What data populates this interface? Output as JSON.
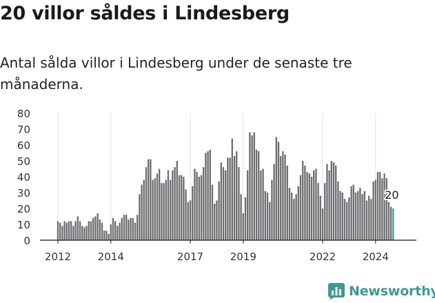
{
  "header": {
    "title": "20 villor såldes i Lindesberg",
    "subtitle": "Antal sålda villor i Lindesberg under de senaste tre månaderna."
  },
  "brand": {
    "name": "Newsworthy",
    "icon": "bar-chart-logo-icon",
    "color": "#3d9a93"
  },
  "chart_data": {
    "type": "bar",
    "title": "",
    "xlabel": "",
    "ylabel": "",
    "ylim": [
      0,
      80
    ],
    "yticks": [
      0,
      10,
      20,
      30,
      40,
      50,
      60,
      70,
      80
    ],
    "x_start": "2012-01",
    "x_tick_labels": [
      {
        "label": "2012",
        "month_index": 0
      },
      {
        "label": "2014",
        "month_index": 24
      },
      {
        "label": "2017",
        "month_index": 60
      },
      {
        "label": "2019",
        "month_index": 84
      },
      {
        "label": "2022",
        "month_index": 120
      },
      {
        "label": "2024",
        "month_index": 144
      }
    ],
    "grid": "vertical",
    "bar_color": "#6b6b70",
    "highlight_color": "#3d9a93",
    "highlight_label": "20",
    "highlight_value": 20,
    "values": [
      12,
      11,
      9,
      12,
      11,
      12,
      12,
      9,
      12,
      15,
      12,
      9,
      8,
      9,
      12,
      12,
      14,
      15,
      17,
      13,
      11,
      6,
      6,
      4,
      10,
      14,
      12,
      9,
      11,
      14,
      16,
      16,
      13,
      14,
      14,
      11,
      16,
      29,
      35,
      38,
      46,
      51,
      51,
      38,
      39,
      42,
      45,
      36,
      36,
      38,
      44,
      38,
      44,
      46,
      50,
      41,
      41,
      40,
      32,
      24,
      25,
      34,
      45,
      43,
      40,
      41,
      46,
      55,
      56,
      57,
      35,
      23,
      25,
      37,
      49,
      46,
      44,
      52,
      52,
      64,
      53,
      56,
      46,
      29,
      17,
      27,
      44,
      68,
      66,
      68,
      57,
      56,
      44,
      45,
      31,
      30,
      24,
      38,
      48,
      65,
      62,
      53,
      56,
      54,
      47,
      33,
      30,
      26,
      29,
      34,
      41,
      50,
      47,
      43,
      42,
      40,
      44,
      45,
      36,
      28,
      20,
      36,
      48,
      44,
      50,
      49,
      47,
      37,
      31,
      30,
      26,
      24,
      27,
      34,
      35,
      30,
      31,
      33,
      29,
      31,
      25,
      28,
      26,
      37,
      38,
      43,
      43,
      39,
      42,
      39,
      24,
      21,
      20
    ]
  }
}
